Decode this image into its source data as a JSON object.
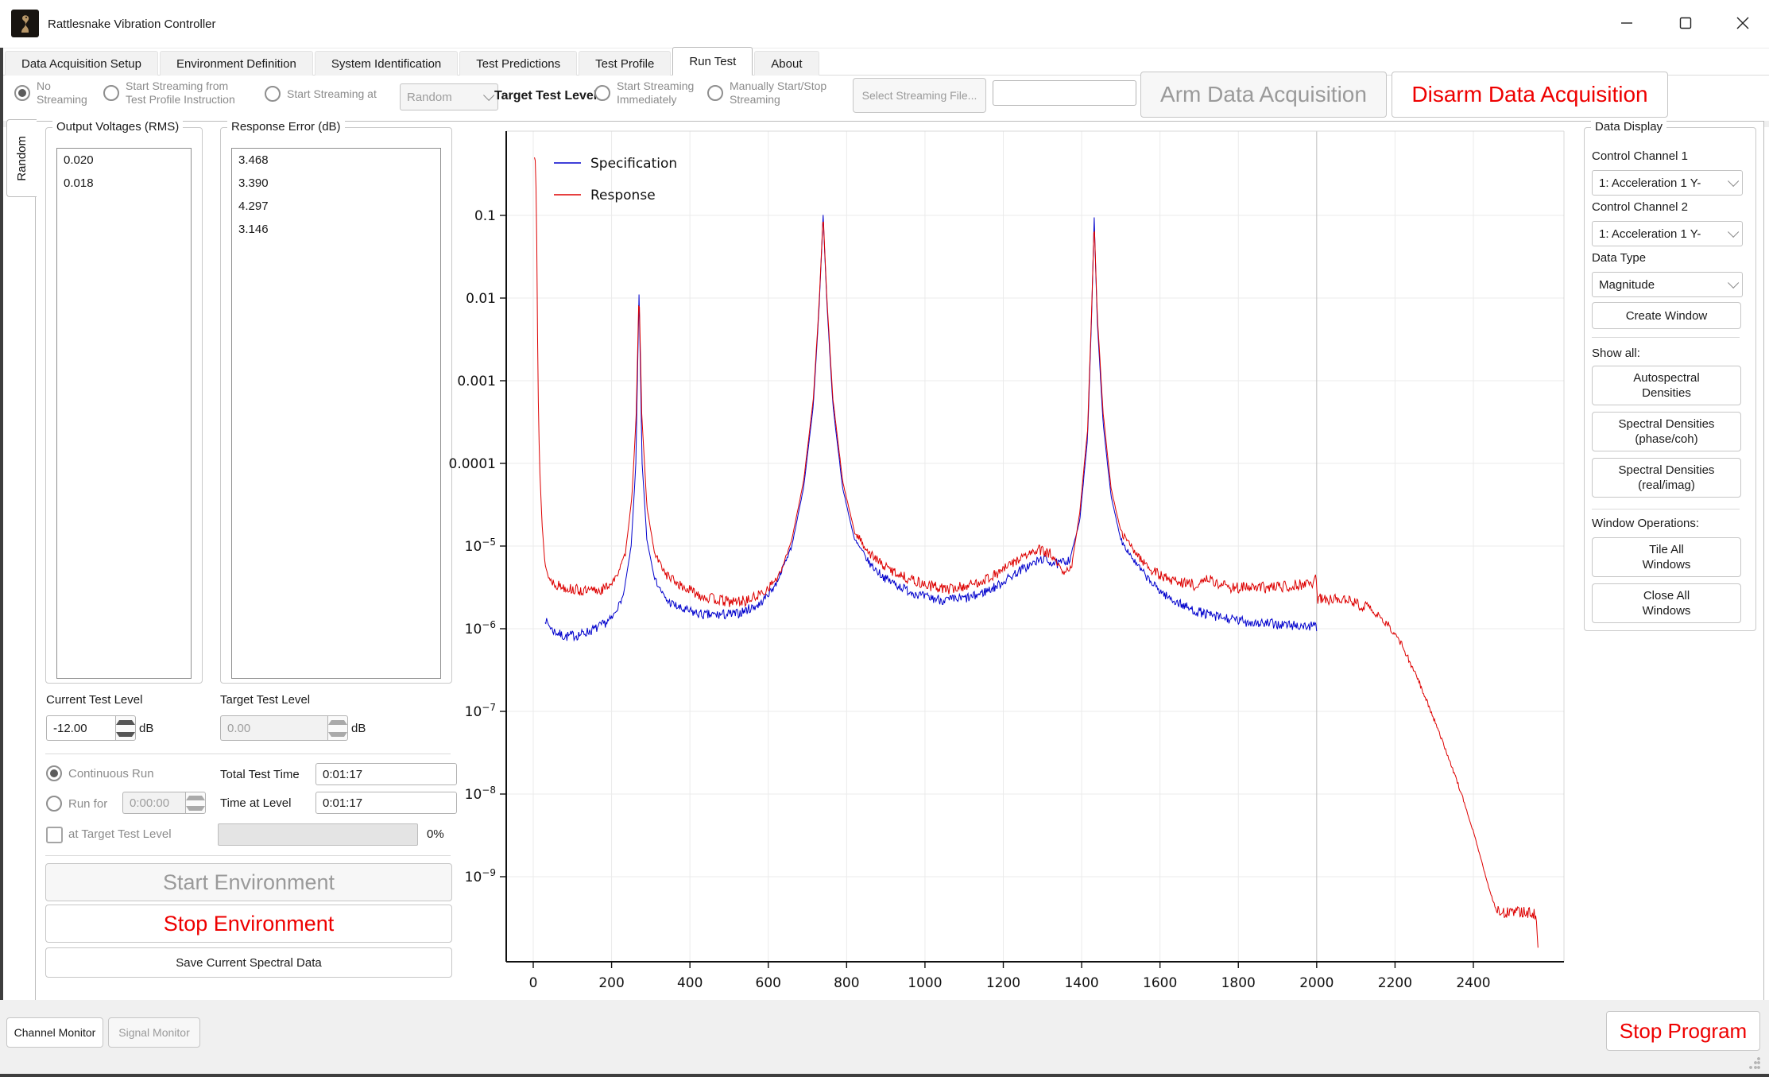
{
  "window": {
    "title": "Rattlesnake Vibration Controller",
    "controls": {
      "minimize": "minimize",
      "maximize": "maximize",
      "close": "close"
    }
  },
  "tabs": {
    "active": "Run Test",
    "items": [
      "Data Acquisition Setup",
      "Environment Definition",
      "System Identification",
      "Test Predictions",
      "Test Profile",
      "Run Test",
      "About"
    ]
  },
  "toolbar": {
    "radios": [
      {
        "label": "No\nStreaming",
        "checked": true
      },
      {
        "label": "Start Streaming from\nTest Profile Instruction",
        "checked": false
      },
      {
        "label": "Start Streaming at",
        "checked": false
      },
      {
        "label": "Start Streaming\nImmediately",
        "checked": false
      },
      {
        "label": "Manually Start/Stop\nStreaming",
        "checked": false
      }
    ],
    "stream_at_dropdown": {
      "value": "Random",
      "disabled": true
    },
    "target_test_level_label": "Target Test Level",
    "select_file_button": "Select Streaming File...",
    "file_input": {
      "value": "",
      "placeholder": ""
    },
    "arm_button": "Arm Data Acquisition",
    "disarm_button": "Disarm Data Acquisition"
  },
  "side_tab": {
    "label": "Random"
  },
  "left_panel": {
    "output_voltages": {
      "title": "Output Voltages (RMS)",
      "items": [
        "0.020",
        "0.018"
      ]
    },
    "response_error": {
      "title": "Response Error (dB)",
      "items": [
        "3.468",
        "3.390",
        "4.297",
        "3.146"
      ]
    },
    "current_test_level": {
      "label": "Current Test Level",
      "value": "-12.00",
      "unit": "dB"
    },
    "target_test_level": {
      "label": "Target Test Level",
      "value": "0.00",
      "unit": "dB"
    },
    "run_control": {
      "continuous_run_label": "Continuous Run",
      "run_for_label": "Run for",
      "run_for_value": "0:00:00",
      "at_target_label": "at Target Test Level",
      "total_test_time": {
        "label": "Total Test Time",
        "value": "0:01:17"
      },
      "time_at_level": {
        "label": "Time at Level",
        "value": "0:01:17"
      },
      "progress_percent": "0%"
    },
    "start_environment_button": "Start Environment",
    "stop_environment_button": "Stop Environment",
    "save_spectral_button": "Save Current Spectral Data"
  },
  "chart_data": {
    "type": "line",
    "title": "",
    "xlabel": "",
    "ylabel": "",
    "x_axis": {
      "min": -69,
      "max": 2631,
      "ticks": [
        0,
        200,
        400,
        600,
        800,
        1000,
        1200,
        1400,
        1600,
        1800,
        2000,
        2200,
        2400
      ],
      "emphasized_gridline": 2000
    },
    "y_axis": {
      "scale": "log",
      "min": 9e-11,
      "max": 0.9,
      "ticks": [
        {
          "value": 0.1,
          "label": "0.1"
        },
        {
          "value": 0.01,
          "label": "0.01"
        },
        {
          "value": 0.001,
          "label": "0.001"
        },
        {
          "value": 0.0001,
          "label": "0.0001"
        },
        {
          "value": 1e-05,
          "base": "10",
          "exp": "−5"
        },
        {
          "value": 1e-06,
          "base": "10",
          "exp": "−6"
        },
        {
          "value": 1e-07,
          "base": "10",
          "exp": "−7"
        },
        {
          "value": 1e-08,
          "base": "10",
          "exp": "−8"
        },
        {
          "value": 1e-09,
          "base": "10",
          "exp": "−9"
        }
      ]
    },
    "legend_position": "upper-left",
    "grid": true,
    "series": [
      {
        "name": "Specification",
        "color": "#0000cc",
        "seed": 7,
        "noise_log10": 0.065,
        "anchors": [
          [
            30,
            1.3e-06
          ],
          [
            50,
            9.5e-07
          ],
          [
            80,
            8e-07
          ],
          [
            120,
            8.5e-07
          ],
          [
            160,
            1e-06
          ],
          [
            200,
            1.3e-06
          ],
          [
            230,
            2.5e-06
          ],
          [
            250,
            1e-05
          ],
          [
            262,
            0.0001
          ],
          [
            270,
            0.011
          ],
          [
            278,
            0.0001
          ],
          [
            290,
            1.2e-05
          ],
          [
            310,
            4e-06
          ],
          [
            340,
            2.2e-06
          ],
          [
            380,
            1.7e-06
          ],
          [
            440,
            1.45e-06
          ],
          [
            520,
            1.5e-06
          ],
          [
            580,
            2e-06
          ],
          [
            620,
            3.5e-06
          ],
          [
            660,
            1e-05
          ],
          [
            690,
            5e-05
          ],
          [
            715,
            0.0005
          ],
          [
            730,
            0.008
          ],
          [
            740,
            0.1
          ],
          [
            750,
            0.008
          ],
          [
            765,
            0.0005
          ],
          [
            790,
            5e-05
          ],
          [
            820,
            1.2e-05
          ],
          [
            860,
            6e-06
          ],
          [
            900,
            4e-06
          ],
          [
            950,
            3e-06
          ],
          [
            1000,
            2.4e-06
          ],
          [
            1060,
            2.2e-06
          ],
          [
            1120,
            2.4e-06
          ],
          [
            1180,
            3.2e-06
          ],
          [
            1240,
            5e-06
          ],
          [
            1300,
            7e-06
          ],
          [
            1340,
            6e-06
          ],
          [
            1370,
            7e-06
          ],
          [
            1395,
            2e-05
          ],
          [
            1415,
            0.0002
          ],
          [
            1425,
            0.005
          ],
          [
            1432,
            0.095
          ],
          [
            1440,
            0.005
          ],
          [
            1455,
            0.0003
          ],
          [
            1475,
            4e-05
          ],
          [
            1500,
            1.2e-05
          ],
          [
            1540,
            6e-06
          ],
          [
            1580,
            3.5e-06
          ],
          [
            1620,
            2.4e-06
          ],
          [
            1680,
            1.7e-06
          ],
          [
            1740,
            1.4e-06
          ],
          [
            1800,
            1.25e-06
          ],
          [
            1870,
            1.15e-06
          ],
          [
            1940,
            1.1e-06
          ],
          [
            2000,
            1.05e-06
          ]
        ]
      },
      {
        "name": "Response",
        "color": "#dd0000",
        "seed": 13,
        "noise_log10": 0.07,
        "anchors": [
          [
            3,
            0.5
          ],
          [
            6,
            0.45
          ],
          [
            9,
            0.05
          ],
          [
            12,
            0.001
          ],
          [
            16,
            0.0001
          ],
          [
            22,
            2e-05
          ],
          [
            30,
            6e-06
          ],
          [
            40,
            4e-06
          ],
          [
            60,
            3.4e-06
          ],
          [
            100,
            3e-06
          ],
          [
            140,
            2.8e-06
          ],
          [
            180,
            3e-06
          ],
          [
            210,
            4e-06
          ],
          [
            235,
            8e-06
          ],
          [
            252,
            4e-05
          ],
          [
            263,
            0.0004
          ],
          [
            270,
            0.013
          ],
          [
            277,
            0.0004
          ],
          [
            290,
            3e-05
          ],
          [
            310,
            8e-06
          ],
          [
            340,
            4.5e-06
          ],
          [
            380,
            3.2e-06
          ],
          [
            440,
            2.4e-06
          ],
          [
            500,
            2.1e-06
          ],
          [
            550,
            2.2e-06
          ],
          [
            590,
            2.8e-06
          ],
          [
            630,
            4.5e-06
          ],
          [
            660,
            1.2e-05
          ],
          [
            690,
            6e-05
          ],
          [
            715,
            0.0006
          ],
          [
            730,
            0.009
          ],
          [
            740,
            0.105
          ],
          [
            750,
            0.009
          ],
          [
            765,
            0.0006
          ],
          [
            790,
            6e-05
          ],
          [
            820,
            1.5e-05
          ],
          [
            860,
            8e-06
          ],
          [
            900,
            5.5e-06
          ],
          [
            950,
            4.2e-06
          ],
          [
            1000,
            3.4e-06
          ],
          [
            1060,
            3e-06
          ],
          [
            1120,
            3.4e-06
          ],
          [
            1180,
            4.5e-06
          ],
          [
            1240,
            7e-06
          ],
          [
            1290,
            9e-06
          ],
          [
            1320,
            8e-06
          ],
          [
            1355,
            4.5e-06
          ],
          [
            1375,
            6e-06
          ],
          [
            1395,
            2.5e-05
          ],
          [
            1415,
            0.00025
          ],
          [
            1425,
            0.006
          ],
          [
            1432,
            0.09
          ],
          [
            1440,
            0.006
          ],
          [
            1455,
            0.0004
          ],
          [
            1475,
            5e-05
          ],
          [
            1500,
            1.5e-05
          ],
          [
            1540,
            8e-06
          ],
          [
            1580,
            5e-06
          ],
          [
            1620,
            4e-06
          ],
          [
            1660,
            3.6e-06
          ],
          [
            1700,
            3.3e-06
          ],
          [
            1720,
            4.2e-06
          ],
          [
            1740,
            3.6e-06
          ],
          [
            1780,
            3.2e-06
          ],
          [
            1840,
            3.1e-06
          ],
          [
            1900,
            3.2e-06
          ],
          [
            1950,
            3.4e-06
          ],
          [
            1990,
            3.6e-06
          ],
          [
            1998,
            4.5e-06
          ],
          [
            2002,
            2.3e-06
          ],
          [
            2030,
            2.2e-06
          ],
          [
            2060,
            2.4e-06
          ],
          [
            2090,
            2.1e-06
          ],
          [
            2130,
            1.8e-06
          ],
          [
            2160,
            1.4e-06
          ],
          [
            2190,
            1e-06
          ],
          [
            2220,
            6e-07
          ],
          [
            2250,
            3e-07
          ],
          [
            2280,
            1.4e-07
          ],
          [
            2310,
            6e-08
          ],
          [
            2340,
            2.5e-08
          ],
          [
            2370,
            1e-08
          ],
          [
            2400,
            3.5e-09
          ],
          [
            2425,
            1.3e-09
          ],
          [
            2445,
            6e-10
          ],
          [
            2460,
            4e-10
          ],
          [
            2480,
            3.6e-10
          ],
          [
            2520,
            3.8e-10
          ],
          [
            2550,
            3.6e-10
          ],
          [
            2560,
            3.5e-10
          ],
          [
            2565,
            1.4e-10
          ]
        ]
      }
    ]
  },
  "right_panel": {
    "title": "Data Display",
    "control_channel_1": {
      "label": "Control Channel 1",
      "value": "1: Acceleration 1 Y-"
    },
    "control_channel_2": {
      "label": "Control Channel 2",
      "value": "1: Acceleration 1 Y-"
    },
    "data_type": {
      "label": "Data Type",
      "value": "Magnitude"
    },
    "create_window_button": "Create Window",
    "show_all_label": "Show all:",
    "autospectral_button": "Autospectral\nDensities",
    "spectral_phase_button": "Spectral Densities\n(phase/coh)",
    "spectral_real_button": "Spectral Densities\n(real/imag)",
    "window_operations_label": "Window Operations:",
    "tile_all_button": "Tile All\nWindows",
    "close_all_button": "Close All\nWindows"
  },
  "status_bar": {
    "channel_monitor_button": "Channel Monitor",
    "signal_monitor_button": "Signal Monitor",
    "stop_program_button": "Stop Program"
  },
  "colors": {
    "danger_red": "#ee0000",
    "disabled_text": "#9a9a9a",
    "spec_blue": "#0000cc",
    "response_red": "#dd0000"
  }
}
